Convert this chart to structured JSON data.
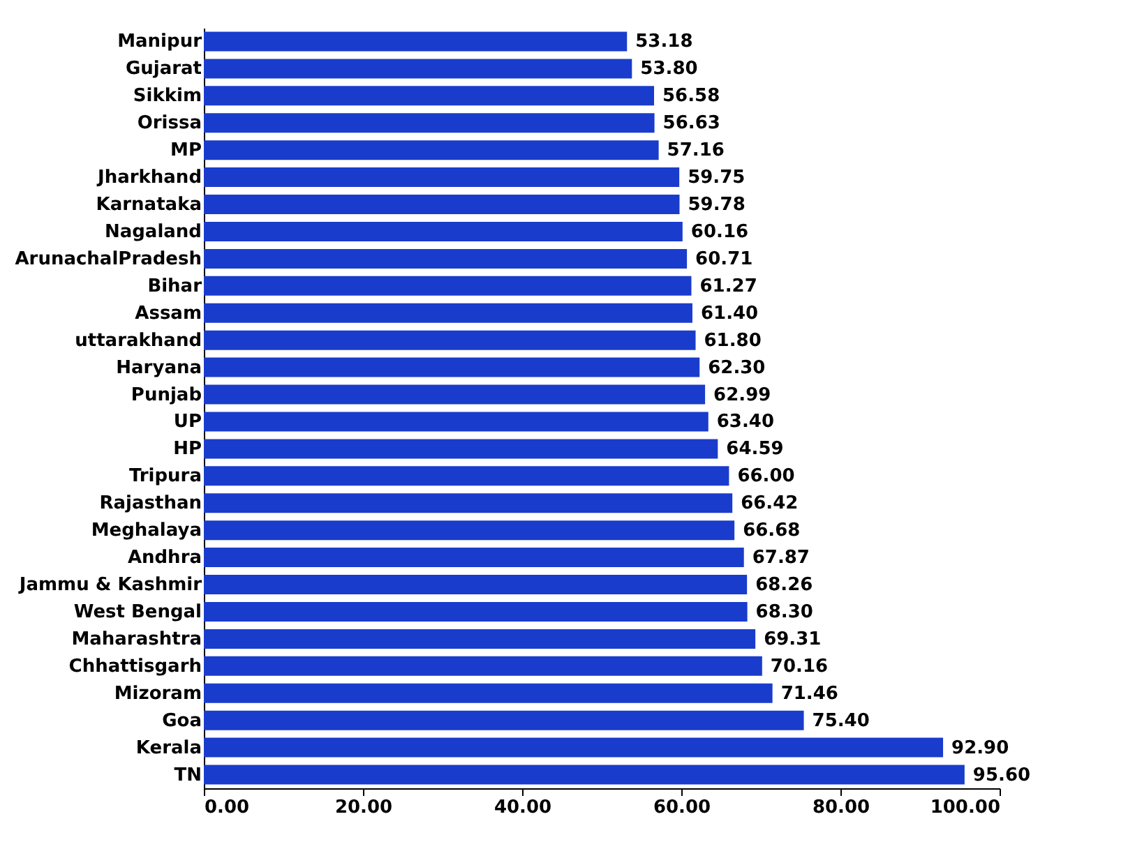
{
  "chart_data": {
    "type": "bar",
    "orientation": "horizontal",
    "categories": [
      "Manipur",
      "Gujarat",
      "Sikkim",
      "Orissa",
      "MP",
      "Jharkhand",
      "Karnataka",
      "Nagaland",
      "ArunachalPradesh",
      "Bihar",
      "Assam",
      "uttarakhand",
      "Haryana",
      "Punjab",
      "UP",
      "HP",
      "Tripura",
      "Rajasthan",
      "Meghalaya",
      "Andhra",
      "Jammu & Kashmir",
      "West Bengal",
      "Maharashtra",
      "Chhattisgarh",
      "Mizoram",
      "Goa",
      "Kerala",
      "TN"
    ],
    "values": [
      53.18,
      53.8,
      56.58,
      56.63,
      57.16,
      59.75,
      59.78,
      60.16,
      60.71,
      61.27,
      61.4,
      61.8,
      62.3,
      62.99,
      63.4,
      64.59,
      66.0,
      66.42,
      66.68,
      67.87,
      68.26,
      68.3,
      69.31,
      70.16,
      71.46,
      75.4,
      92.9,
      95.6
    ],
    "value_labels": [
      "53.18",
      "53.80",
      "56.58",
      "56.63",
      "57.16",
      "59.75",
      "59.78",
      "60.16",
      "60.71",
      "61.27",
      "61.40",
      "61.80",
      "62.30",
      "62.99",
      "63.40",
      "64.59",
      "66.00",
      "66.42",
      "66.68",
      "67.87",
      "68.26",
      "68.30",
      "69.31",
      "70.16",
      "71.46",
      "75.40",
      "92.90",
      "95.60"
    ],
    "color": "#1a3ccc",
    "xlim": [
      0,
      100
    ],
    "xticks": [
      {
        "value": 0,
        "label": "0.00"
      },
      {
        "value": 20,
        "label": "20.00"
      },
      {
        "value": 40,
        "label": "40.00"
      },
      {
        "value": 60,
        "label": "60.00"
      },
      {
        "value": 80,
        "label": "80.00"
      },
      {
        "value": 100,
        "label": "100.00"
      }
    ],
    "grid": false
  }
}
